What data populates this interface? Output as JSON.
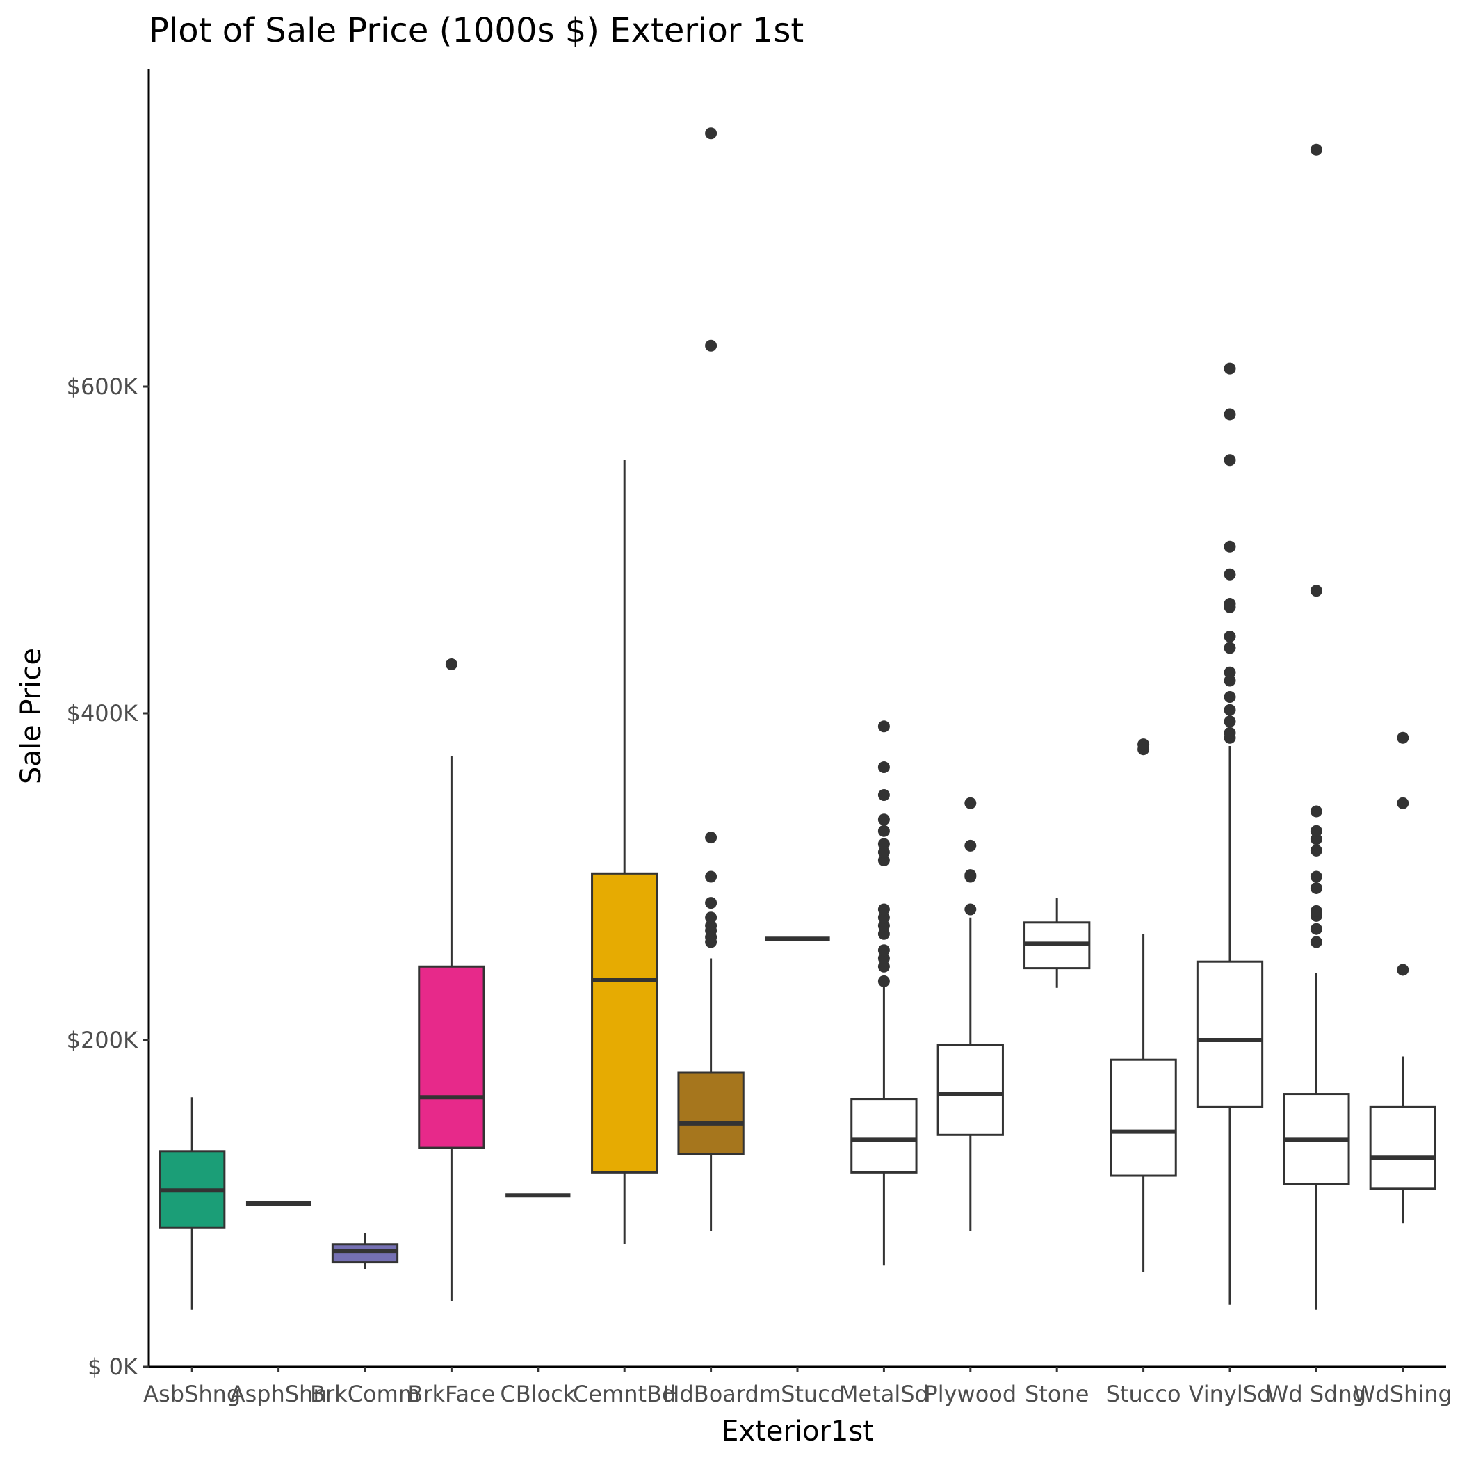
{
  "chart_data": {
    "type": "boxplot",
    "title": "Plot of Sale Price (1000s $) Exterior 1st",
    "xlabel": "Exterior1st",
    "ylabel": "Sale Price",
    "ylim": [
      0,
      755000
    ],
    "yticks": [
      0,
      200000,
      400000,
      600000
    ],
    "ytick_labels": [
      "$  0K",
      "$200K",
      "$400K",
      "$600K"
    ],
    "grid": false,
    "legend": "none",
    "categories": [
      {
        "name": "AsbShng",
        "fill": "#1b9e77",
        "whislo": 35000,
        "q1": 85000,
        "med": 108000,
        "q3": 132000,
        "whishi": 165000,
        "outliers": []
      },
      {
        "name": "AsphShn",
        "fill": "#7570b3",
        "whislo": 100000,
        "q1": 100000,
        "med": 100000,
        "q3": 100000,
        "whishi": 100000,
        "outliers": []
      },
      {
        "name": "BrkComm",
        "fill": "#7570b3",
        "whislo": 60000,
        "q1": 64000,
        "med": 71000,
        "q3": 75000,
        "whishi": 82000,
        "outliers": []
      },
      {
        "name": "BrkFace",
        "fill": "#e7298a",
        "whislo": 40000,
        "q1": 134000,
        "med": 165000,
        "q3": 245000,
        "whishi": 374000,
        "outliers": [
          430000
        ]
      },
      {
        "name": "CBlock",
        "fill": "#66a61e",
        "whislo": 105000,
        "q1": 105000,
        "med": 105000,
        "q3": 105000,
        "whishi": 105000,
        "outliers": []
      },
      {
        "name": "CemntBd",
        "fill": "#e6ab02",
        "whislo": 75000,
        "q1": 119000,
        "med": 237000,
        "q3": 302000,
        "whishi": 555000,
        "outliers": []
      },
      {
        "name": "HdBoard",
        "fill": "#a6761d",
        "whislo": 83000,
        "q1": 130000,
        "med": 149000,
        "q3": 180000,
        "whishi": 250000,
        "outliers": [
          260000,
          263000,
          267000,
          270000,
          275000,
          284000,
          300000,
          324000,
          625000,
          755000
        ]
      },
      {
        "name": "ImStucc",
        "fill": "#666666",
        "whislo": 262000,
        "q1": 262000,
        "med": 262000,
        "q3": 262000,
        "whishi": 262000,
        "outliers": []
      },
      {
        "name": "MetalSd",
        "fill": "#ffffff",
        "whislo": 62000,
        "q1": 119000,
        "med": 139000,
        "q3": 164000,
        "whishi": 233000,
        "outliers": [
          236000,
          245000,
          250000,
          255000,
          265000,
          270000,
          275000,
          280000,
          310000,
          315000,
          320000,
          328000,
          335000,
          350000,
          367000,
          392000
        ]
      },
      {
        "name": "Plywood",
        "fill": "#ffffff",
        "whislo": 83000,
        "q1": 142000,
        "med": 167000,
        "q3": 197000,
        "whishi": 275000,
        "outliers": [
          280000,
          300000,
          301000,
          319000,
          345000
        ]
      },
      {
        "name": "Stone",
        "fill": "#ffffff",
        "whislo": 232000,
        "q1": 244000,
        "med": 259000,
        "q3": 272000,
        "whishi": 287000,
        "outliers": []
      },
      {
        "name": "Stucco",
        "fill": "#ffffff",
        "whislo": 58000,
        "q1": 117000,
        "med": 144000,
        "q3": 188000,
        "whishi": 265000,
        "outliers": [
          378000,
          381000
        ]
      },
      {
        "name": "VinylSd",
        "fill": "#ffffff",
        "whislo": 38000,
        "q1": 159000,
        "med": 200000,
        "q3": 248000,
        "whishi": 380000,
        "outliers": [
          385000,
          388000,
          395000,
          402000,
          410000,
          420000,
          425000,
          440000,
          447000,
          465000,
          467000,
          485000,
          502000,
          555000,
          583000,
          611000
        ]
      },
      {
        "name": "Wd Sdng",
        "fill": "#ffffff",
        "whislo": 35000,
        "q1": 112000,
        "med": 139000,
        "q3": 167000,
        "whishi": 241000,
        "outliers": [
          260000,
          268000,
          276000,
          279000,
          293000,
          300000,
          316000,
          323000,
          328000,
          340000,
          475000,
          745000
        ]
      },
      {
        "name": "WdShing",
        "fill": "#ffffff",
        "whislo": 88000,
        "q1": 109000,
        "med": 128000,
        "q3": 159000,
        "whishi": 190000,
        "outliers": [
          243000,
          345000,
          385000
        ]
      }
    ]
  }
}
